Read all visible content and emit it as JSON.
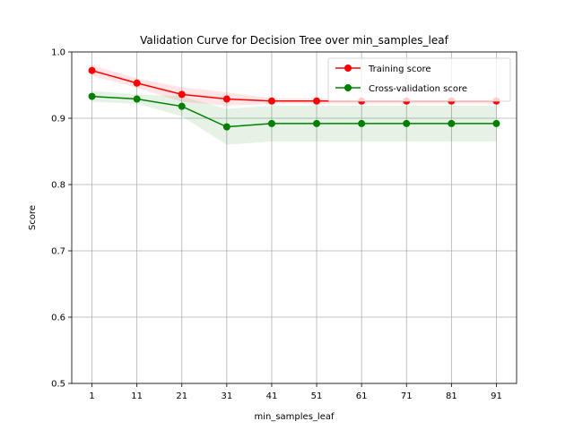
{
  "chart_data": {
    "type": "line",
    "title": "Validation Curve for Decision Tree over min_samples_leaf",
    "xlabel": "min_samples_leaf",
    "ylabel": "Score",
    "x": [
      1,
      11,
      21,
      31,
      41,
      51,
      61,
      71,
      81,
      91
    ],
    "xlim": [
      -3.5,
      95.5
    ],
    "ylim": [
      0.5,
      1.0
    ],
    "yticks": [
      0.5,
      0.6,
      0.7,
      0.8,
      0.9,
      1.0
    ],
    "ytick_labels": [
      "0.5",
      "0.6",
      "0.7",
      "0.8",
      "0.9",
      "1.0"
    ],
    "xtick_labels": [
      "1",
      "11",
      "21",
      "31",
      "41",
      "51",
      "61",
      "71",
      "81",
      "91"
    ],
    "grid": true,
    "legend_position": "upper right",
    "series": [
      {
        "name": "Training score",
        "color": "#ff0000",
        "values": [
          0.972,
          0.953,
          0.936,
          0.929,
          0.926,
          0.926,
          0.926,
          0.926,
          0.926,
          0.926
        ],
        "band_lower": [
          0.964,
          0.946,
          0.925,
          0.919,
          0.922,
          0.922,
          0.922,
          0.922,
          0.922,
          0.922
        ],
        "band_upper": [
          0.98,
          0.96,
          0.947,
          0.939,
          0.93,
          0.93,
          0.93,
          0.93,
          0.93,
          0.93
        ]
      },
      {
        "name": "Cross-validation score",
        "color": "#008000",
        "values": [
          0.933,
          0.929,
          0.918,
          0.887,
          0.892,
          0.892,
          0.892,
          0.892,
          0.892,
          0.892
        ],
        "band_lower": [
          0.925,
          0.922,
          0.903,
          0.86,
          0.865,
          0.865,
          0.865,
          0.865,
          0.865,
          0.865
        ],
        "band_upper": [
          0.941,
          0.936,
          0.933,
          0.914,
          0.919,
          0.919,
          0.919,
          0.919,
          0.919,
          0.919
        ]
      }
    ]
  }
}
